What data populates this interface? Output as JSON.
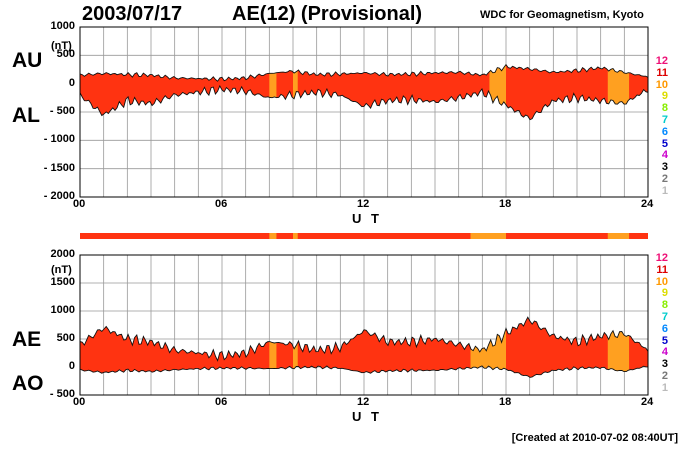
{
  "header": {
    "date": "2003/07/17",
    "title": "AE(12) (Provisional)",
    "org": "WDC for Geomagnetism, Kyoto"
  },
  "footer": {
    "created": "[Created at 2010-07-02 08:40UT]"
  },
  "colors": {
    "fill_main": "#ff3311",
    "fill_alt": "#ffa020",
    "line": "#111111",
    "grid": "#999999"
  },
  "legend": {
    "levels": [
      {
        "label": "12",
        "color": "#ee1177"
      },
      {
        "label": "11",
        "color": "#dd0000"
      },
      {
        "label": "10",
        "color": "#ff9900"
      },
      {
        "label": "9",
        "color": "#dddd00"
      },
      {
        "label": "8",
        "color": "#88ee00"
      },
      {
        "label": "7",
        "color": "#00cccc"
      },
      {
        "label": "6",
        "color": "#0088ff"
      },
      {
        "label": "5",
        "color": "#0000cc"
      },
      {
        "label": "4",
        "color": "#cc00cc"
      },
      {
        "label": "3",
        "color": "#000000"
      },
      {
        "label": "2",
        "color": "#777777"
      },
      {
        "label": "1",
        "color": "#bbbbbb"
      }
    ]
  },
  "chart_data": [
    {
      "type": "area",
      "panel": "AU/AL",
      "labels": {
        "upper": "AU",
        "lower": "AL",
        "unit": "(nT)",
        "xlabel": "U T"
      },
      "ylim": [
        -2000,
        1000
      ],
      "yticks": [
        1000,
        500,
        0,
        -500,
        -1000,
        -1500,
        -2000
      ],
      "ytick_labels": [
        "1000",
        "500",
        "0",
        "- 500",
        "- 1000",
        "- 1500",
        "- 2000"
      ],
      "xlim": [
        0,
        24
      ],
      "xticks": [
        0,
        6,
        12,
        18,
        24
      ],
      "xtick_labels": [
        "00",
        "06",
        "12",
        "18",
        "24"
      ],
      "hours": [
        0,
        1,
        2,
        3,
        4,
        5,
        6,
        7,
        8,
        9,
        10,
        11,
        12,
        13,
        14,
        15,
        16,
        17,
        18,
        19,
        20,
        21,
        22,
        23,
        24
      ],
      "upper_values": [
        150,
        180,
        160,
        150,
        100,
        90,
        80,
        100,
        180,
        220,
        160,
        170,
        190,
        160,
        170,
        190,
        200,
        150,
        300,
        260,
        200,
        230,
        280,
        200,
        120
      ],
      "lower_values": [
        -200,
        -550,
        -300,
        -350,
        -200,
        -150,
        -100,
        -130,
        -250,
        -200,
        -150,
        -200,
        -400,
        -300,
        -280,
        -320,
        -250,
        -150,
        -380,
        -620,
        -300,
        -250,
        -300,
        -350,
        -100
      ],
      "orange_intervals": [
        [
          8.0,
          8.3
        ],
        [
          9.0,
          9.2
        ],
        [
          17.3,
          18.0
        ],
        [
          22.3,
          23.2
        ]
      ]
    },
    {
      "type": "area",
      "panel": "AE/AO",
      "labels": {
        "upper": "AE",
        "lower": "AO",
        "unit": "(nT)",
        "xlabel": "U T"
      },
      "ylim": [
        -500,
        2000
      ],
      "yticks": [
        2000,
        1500,
        1000,
        500,
        0,
        -500
      ],
      "ytick_labels": [
        "2000",
        "1500",
        "1000",
        "500",
        "0",
        "- 500"
      ],
      "xlim": [
        0,
        24
      ],
      "xticks": [
        0,
        6,
        12,
        18,
        24
      ],
      "xtick_labels": [
        "00",
        "06",
        "12",
        "18",
        "24"
      ],
      "hours": [
        0,
        1,
        2,
        3,
        4,
        5,
        6,
        7,
        8,
        9,
        10,
        11,
        12,
        13,
        14,
        15,
        16,
        17,
        18,
        19,
        20,
        21,
        22,
        23,
        24
      ],
      "ae_values": [
        400,
        700,
        500,
        450,
        300,
        250,
        200,
        250,
        450,
        400,
        300,
        350,
        650,
        450,
        450,
        500,
        400,
        300,
        600,
        850,
        550,
        450,
        550,
        600,
        300
      ],
      "ao_values": [
        -50,
        -100,
        -60,
        -80,
        -50,
        -30,
        -20,
        -20,
        -30,
        -10,
        0,
        -20,
        -100,
        -70,
        -60,
        -60,
        -30,
        0,
        -40,
        -180,
        -60,
        -20,
        -10,
        -80,
        20
      ],
      "orange_intervals": [
        [
          8.0,
          8.3
        ],
        [
          9.0,
          9.2
        ],
        [
          16.5,
          18.0
        ],
        [
          22.3,
          23.2
        ]
      ]
    }
  ]
}
